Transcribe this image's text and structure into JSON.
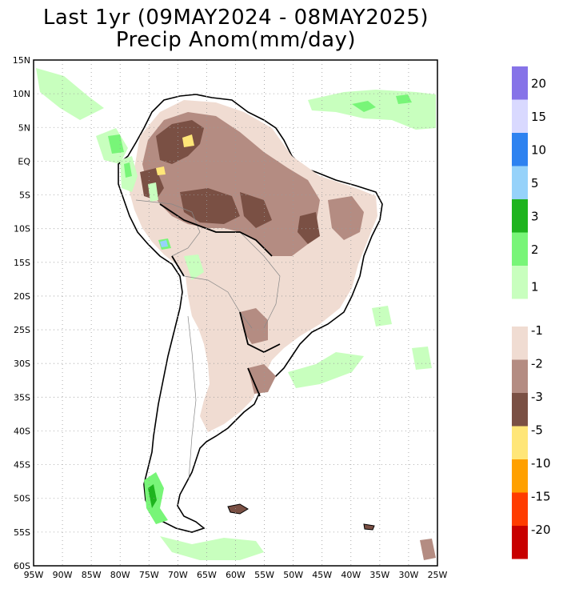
{
  "title": "Last 1yr (09MAY2024 - 08MAY2025)",
  "subtitle": "Precip Anom(mm/day)",
  "map": {
    "lon_ticks": [
      "95W",
      "90W",
      "85W",
      "80W",
      "75W",
      "70W",
      "65W",
      "60W",
      "55W",
      "50W",
      "45W",
      "40W",
      "35W",
      "30W",
      "25W"
    ],
    "lat_ticks": [
      "15N",
      "10N",
      "5N",
      "EQ",
      "5S",
      "10S",
      "15S",
      "20S",
      "25S",
      "30S",
      "35S",
      "40S",
      "45S",
      "50S",
      "55S",
      "60S"
    ],
    "lon_range": [
      -95,
      -25
    ],
    "lat_range": [
      -60,
      15
    ],
    "grid": "dotted"
  },
  "legend_wet": {
    "labels": [
      "20",
      "15",
      "10",
      "5",
      "3",
      "2",
      "1"
    ],
    "colors": [
      "#8673e8",
      "#d9d9ff",
      "#2e82f0",
      "#96d2fa",
      "#1eb41e",
      "#78f578",
      "#c8ffbe"
    ]
  },
  "legend_dry": {
    "labels": [
      "-1",
      "-2",
      "-3",
      "-5",
      "-10",
      "-15",
      "-20"
    ],
    "colors": [
      "#f0dcd2",
      "#b48c82",
      "#7a5044",
      "#ffe678",
      "#ffa000",
      "#ff3c00",
      "#c80000"
    ]
  }
}
